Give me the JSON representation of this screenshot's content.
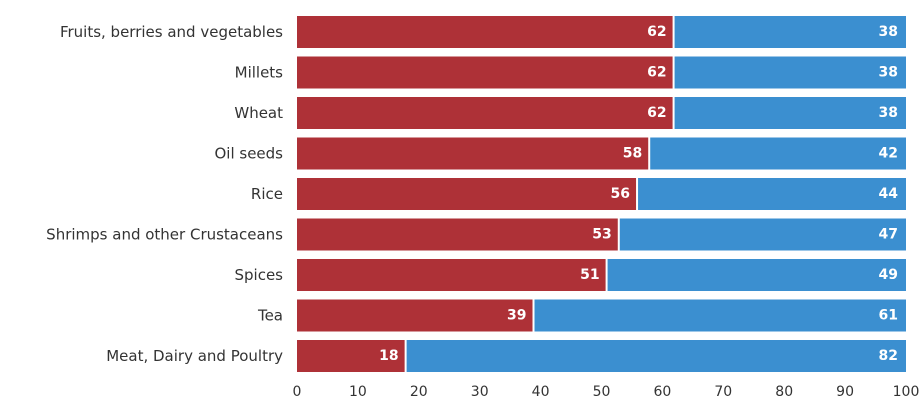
{
  "chart_data": {
    "type": "bar",
    "orientation": "horizontal",
    "stacked": true,
    "categories": [
      "Fruits, berries and vegetables",
      "Millets",
      "Wheat",
      "Oil seeds",
      "Rice",
      "Shrimps and other Crustaceans",
      "Spices",
      "Tea",
      "Meat, Dairy and Poultry"
    ],
    "series": [
      {
        "color": "#ae3137",
        "values": [
          62,
          62,
          62,
          58,
          56,
          53,
          51,
          39,
          18
        ]
      },
      {
        "color": "#3b8fd0",
        "values": [
          38,
          38,
          38,
          42,
          44,
          47,
          49,
          61,
          82
        ]
      }
    ],
    "xlim": [
      0,
      100
    ],
    "xticks": [
      0,
      10,
      20,
      30,
      40,
      50,
      60,
      70,
      80,
      90,
      100
    ],
    "grid": false,
    "legend": "none"
  }
}
